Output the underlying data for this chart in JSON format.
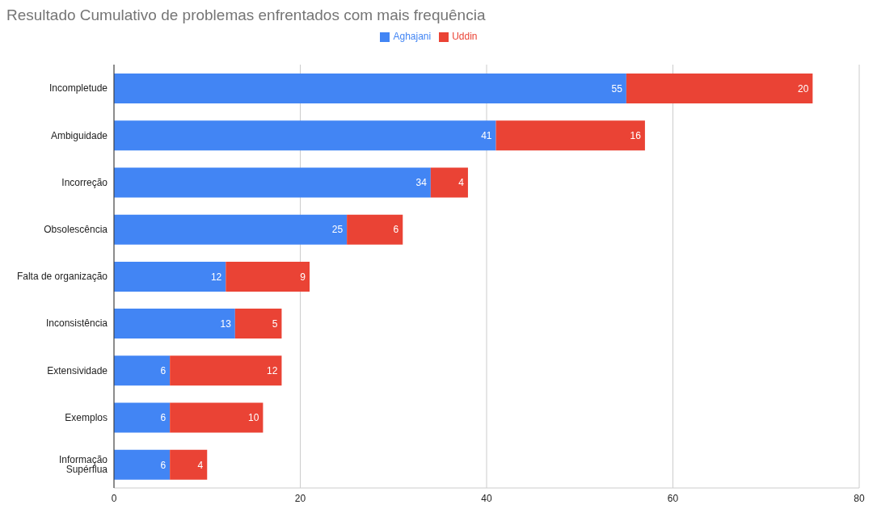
{
  "chart_data": {
    "type": "bar",
    "orientation": "horizontal",
    "stacked": true,
    "title": "Resultado Cumulativo de problemas enfrentados com mais frequência",
    "categories": [
      "Incompletude",
      "Ambiguidade",
      "Incorreção",
      "Obsolescência",
      "Falta de organização",
      "Inconsistência",
      "Extensividade",
      "Exemplos",
      "Informação Supérflua"
    ],
    "series": [
      {
        "name": "Aghajani",
        "color": "#4285f4",
        "values": [
          55,
          41,
          34,
          25,
          12,
          13,
          6,
          6,
          6
        ]
      },
      {
        "name": "Uddin",
        "color": "#ea4335",
        "values": [
          20,
          16,
          4,
          6,
          9,
          5,
          12,
          10,
          4
        ]
      }
    ],
    "xlim": [
      0,
      80
    ],
    "xticks": [
      0,
      20,
      40,
      60,
      80
    ],
    "grid": "x",
    "legend": "top",
    "data_labels": true
  }
}
